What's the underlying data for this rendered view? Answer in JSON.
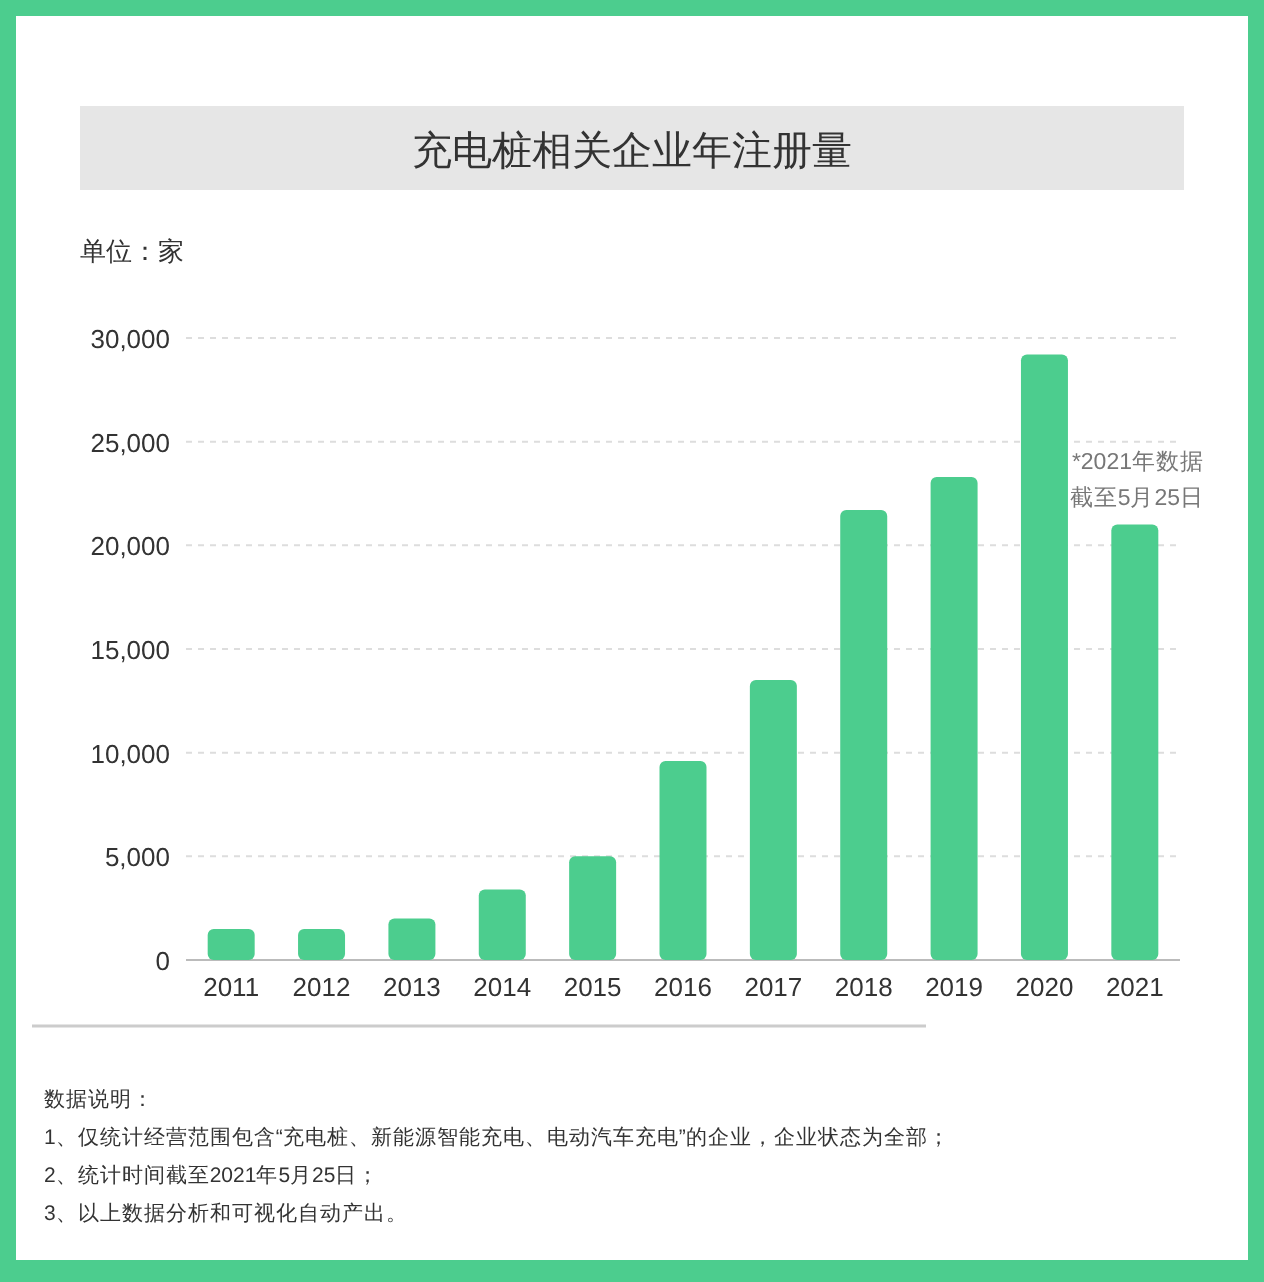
{
  "chart_data": {
    "type": "bar",
    "title": "充电桩相关企业年注册量",
    "ylabel": "单位：家",
    "categories": [
      "2011",
      "2012",
      "2013",
      "2014",
      "2015",
      "2016",
      "2017",
      "2018",
      "2019",
      "2020",
      "2021"
    ],
    "values": [
      1500,
      1500,
      2000,
      3400,
      5000,
      9600,
      13500,
      21700,
      23300,
      29200,
      21000
    ],
    "color": "#4ccd8e",
    "ylim": [
      0,
      30000
    ],
    "yticks": [
      {
        "value": 0,
        "label": "0"
      },
      {
        "value": 5000,
        "label": "5,000"
      },
      {
        "value": 10000,
        "label": "10,000"
      },
      {
        "value": 15000,
        "label": "15,000"
      },
      {
        "value": 20000,
        "label": "20,000"
      },
      {
        "value": 25000,
        "label": "25,000"
      },
      {
        "value": 30000,
        "label": "30,000"
      }
    ],
    "grid": "y",
    "annotations": [
      {
        "text": "*2021年数据截至5月25日",
        "x": "2021",
        "y": 21000
      },
      "数据说明：",
      "1、仅统计经营范围包含“充电桩、新能源智能充电、电动汽车充电”的企业，企业状态为全部；",
      "2、统计时间截至2021年5月25日；",
      "3、以上数据分析和可视化自动产出。"
    ]
  }
}
